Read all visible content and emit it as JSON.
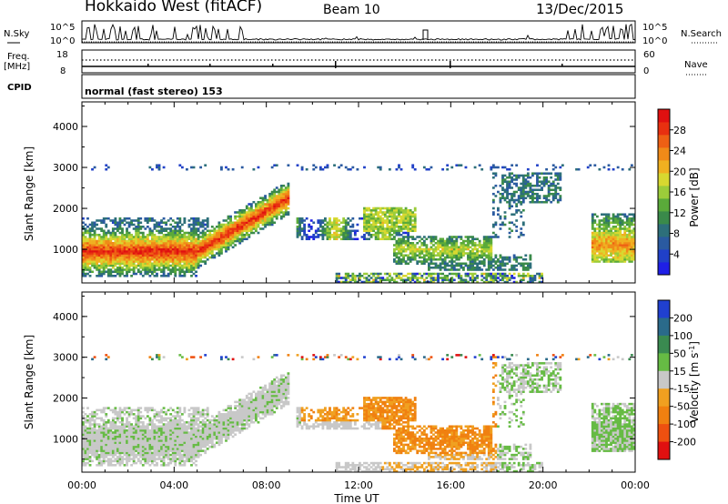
{
  "header": {
    "title": "Hokkaido West (fitACF)",
    "beam": "Beam 10",
    "date": "13/Dec/2015"
  },
  "noise_panel": {
    "left_label": "N.Sky",
    "right_label": "N.Search",
    "left_ticks": [
      "10^5",
      "10^0"
    ],
    "right_ticks": [
      "10^5",
      "10^0"
    ]
  },
  "freq_panel": {
    "left_label_line1": "Freq.",
    "left_label_line2": "[MHz]",
    "left_ticks": [
      "18",
      "8"
    ],
    "right_label": "Nave",
    "right_ticks": [
      "60",
      "0"
    ]
  },
  "cpid": {
    "label": "CPID",
    "text": "normal (fast stereo) 153"
  },
  "chart_data": [
    {
      "type": "heatmap",
      "name": "power-panel",
      "ylabel": "Slant Range [km]",
      "ylim": [
        180,
        4600
      ],
      "yticks": [
        "1000",
        "2000",
        "3000",
        "4000"
      ],
      "xlim": [
        0,
        24
      ],
      "colorbar": {
        "label": "Power [dB]",
        "ticks": [
          "4",
          "8",
          "12",
          "16",
          "20",
          "24",
          "28"
        ],
        "range": [
          0,
          32
        ],
        "colors": [
          "#1f1fe6",
          "#2040c8",
          "#2a5aa0",
          "#2d6f7a",
          "#3a8a4a",
          "#5aaa3a",
          "#9ccc3a",
          "#d8d830",
          "#f0b020",
          "#f08a18",
          "#ee6014",
          "#e83010",
          "#e01010"
        ]
      }
    },
    {
      "type": "heatmap",
      "name": "velocity-panel",
      "ylabel": "Slant Range [km]",
      "ylim": [
        180,
        4600
      ],
      "yticks": [
        "1000",
        "2000",
        "3000",
        "4000"
      ],
      "xlim": [
        0,
        24
      ],
      "xticks": [
        "00:00",
        "04:00",
        "08:00",
        "12:00",
        "16:00",
        "20:00",
        "00:00"
      ],
      "xlabel": "Time UT",
      "colorbar": {
        "label": "Velocity [m s",
        "label_sup": "-1",
        "label_end": "]",
        "ticks": [
          "200",
          "100",
          "50",
          "15",
          "-15",
          "-50",
          "-100",
          "-200"
        ],
        "colors": [
          "#2040d0",
          "#2a6a8a",
          "#3a8a50",
          "#66bb44",
          "#c8c8c8",
          "#f0a020",
          "#f08010",
          "#ee5010",
          "#e01010"
        ]
      }
    }
  ]
}
